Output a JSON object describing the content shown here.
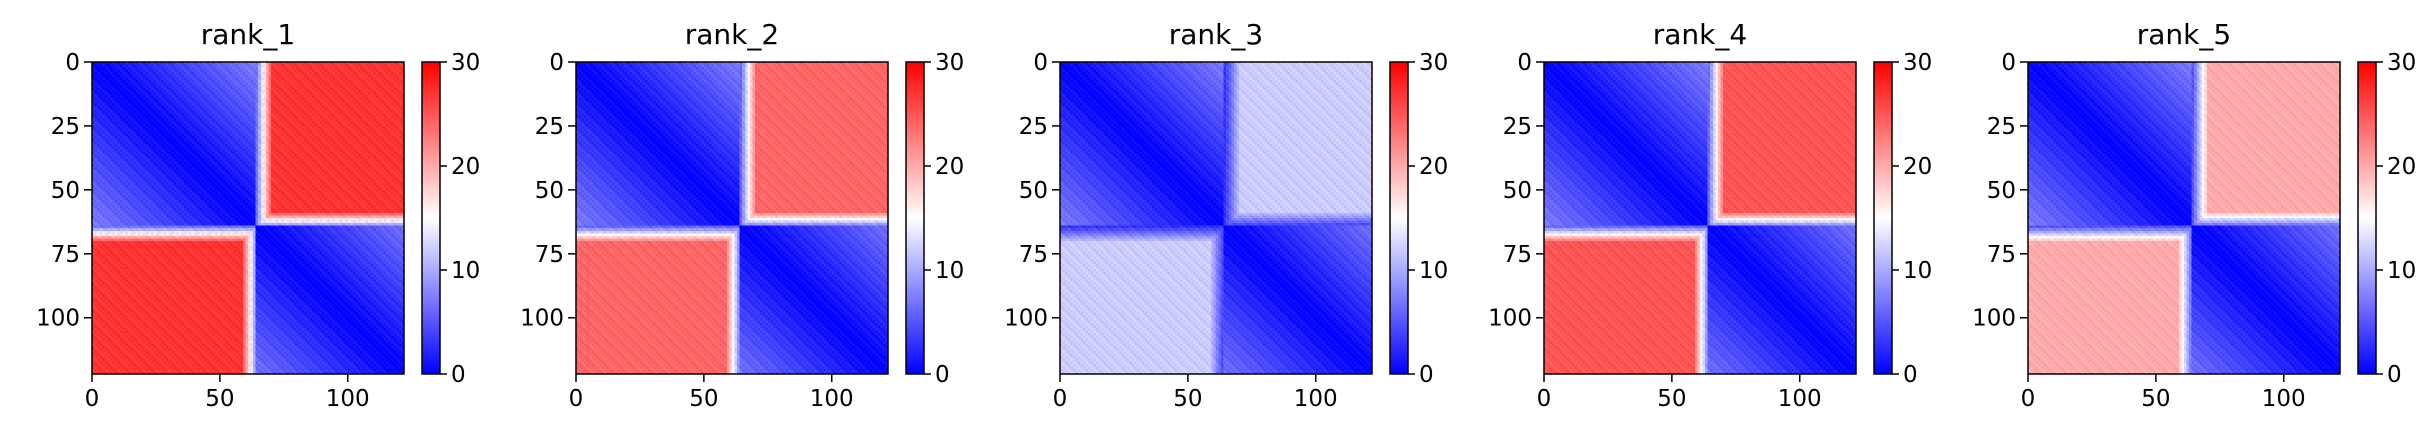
{
  "chart_data": [
    {
      "type": "heatmap",
      "title": "rank_1",
      "xlim": [
        0,
        122
      ],
      "ylim": [
        0,
        122
      ],
      "xticks": [
        "0",
        "50",
        "100"
      ],
      "yticks": [
        "0",
        "25",
        "50",
        "75",
        "100"
      ],
      "colorbar": {
        "range": [
          0,
          30
        ],
        "ticks": [
          "0",
          "10",
          "20",
          "30"
        ],
        "colormap": "bwr"
      },
      "regime_split": 64,
      "intra_distance_max": 14,
      "inter_distance_level": 27,
      "inter_transition_band": 0
    },
    {
      "type": "heatmap",
      "title": "rank_2",
      "xlim": [
        0,
        122
      ],
      "ylim": [
        0,
        122
      ],
      "xticks": [
        "0",
        "50",
        "100"
      ],
      "yticks": [
        "0",
        "25",
        "50",
        "75",
        "100"
      ],
      "colorbar": {
        "range": [
          0,
          30
        ],
        "ticks": [
          "0",
          "10",
          "20",
          "30"
        ],
        "colormap": "bwr"
      },
      "regime_split": 64,
      "intra_distance_max": 14,
      "inter_distance_level": 24,
      "inter_transition_band": 0
    },
    {
      "type": "heatmap",
      "title": "rank_3",
      "xlim": [
        0,
        122
      ],
      "ylim": [
        0,
        122
      ],
      "xticks": [
        "0",
        "50",
        "100"
      ],
      "yticks": [
        "0",
        "25",
        "50",
        "75",
        "100"
      ],
      "colorbar": {
        "range": [
          0,
          30
        ],
        "ticks": [
          "0",
          "10",
          "20",
          "30"
        ],
        "colormap": "bwr"
      },
      "regime_split": 64,
      "intra_distance_max": 14,
      "inter_distance_level": 12,
      "inter_transition_band": 0
    },
    {
      "type": "heatmap",
      "title": "rank_4",
      "xlim": [
        0,
        122
      ],
      "ylim": [
        0,
        122
      ],
      "xticks": [
        "0",
        "50",
        "100"
      ],
      "yticks": [
        "0",
        "25",
        "50",
        "75",
        "100"
      ],
      "colorbar": {
        "range": [
          0,
          30
        ],
        "ticks": [
          "0",
          "10",
          "20",
          "30"
        ],
        "colormap": "bwr"
      },
      "regime_split": 64,
      "intra_distance_max": 14,
      "inter_distance_level": 25,
      "inter_transition_band": 0
    },
    {
      "type": "heatmap",
      "title": "rank_5",
      "xlim": [
        0,
        122
      ],
      "ylim": [
        0,
        122
      ],
      "xticks": [
        "0",
        "50",
        "100"
      ],
      "yticks": [
        "0",
        "25",
        "50",
        "75",
        "100"
      ],
      "colorbar": {
        "range": [
          0,
          30
        ],
        "ticks": [
          "0",
          "10",
          "20",
          "30"
        ],
        "colormap": "bwr"
      },
      "regime_split": 64,
      "intra_distance_max": 14,
      "inter_distance_level": 20,
      "inter_transition_band": 0
    }
  ]
}
